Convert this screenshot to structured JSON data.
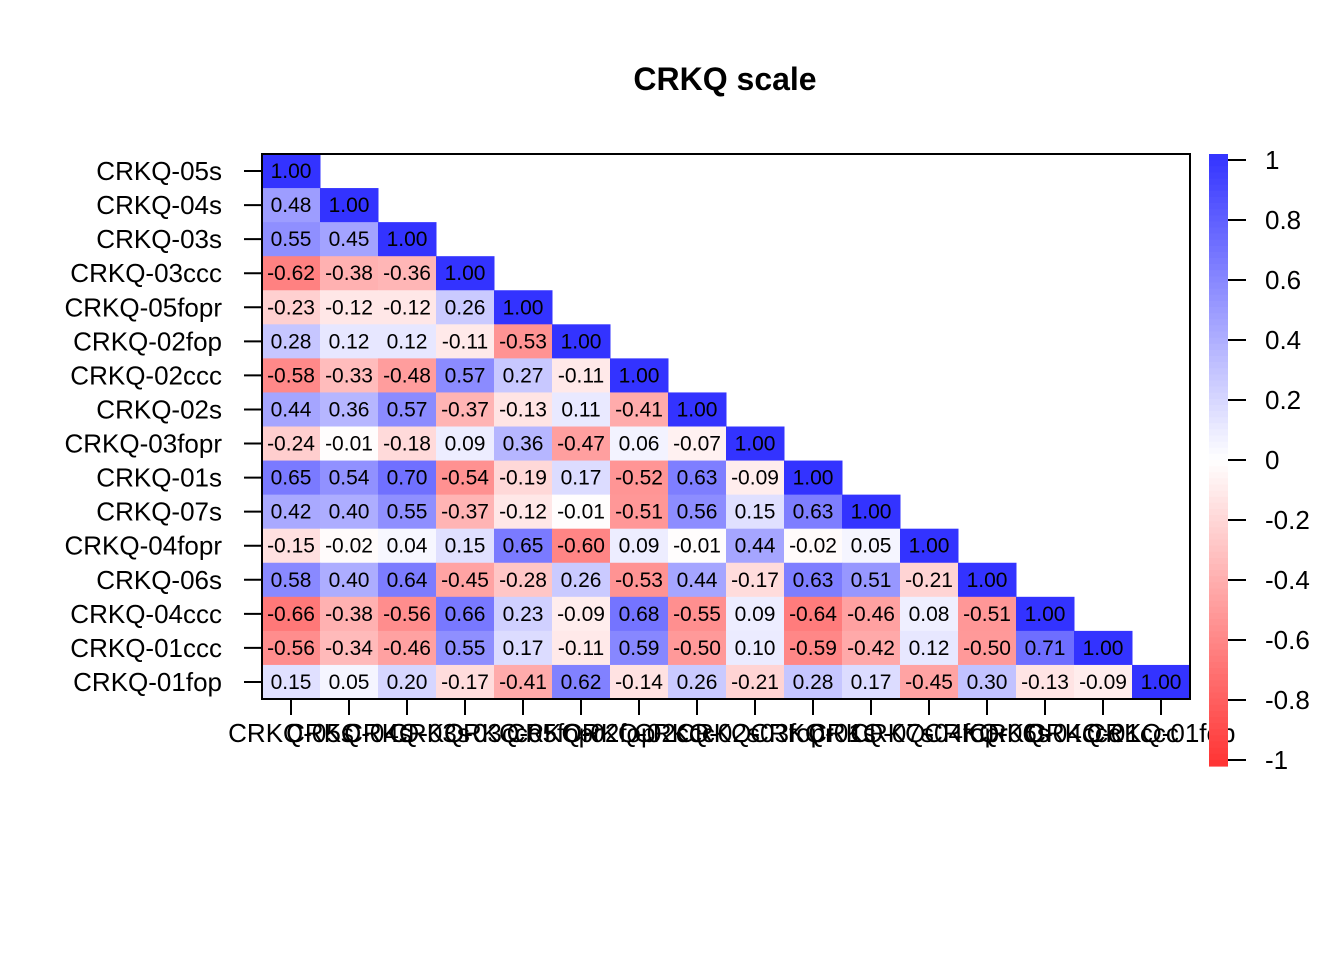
{
  "chart_data": {
    "type": "heatmap",
    "subtype": "lower-triangle correlation matrix",
    "title": "CRKQ scale",
    "variables": [
      "CRKQ-05s",
      "CRKQ-04s",
      "CRKQ-03s",
      "CRKQ-03ccc",
      "CRKQ-05fopr",
      "CRKQ-02fop",
      "CRKQ-02ccc",
      "CRKQ-02s",
      "CRKQ-03fopr",
      "CRKQ-01s",
      "CRKQ-07s",
      "CRKQ-04fopr",
      "CRKQ-06s",
      "CRKQ-04ccc",
      "CRKQ-01ccc",
      "CRKQ-01fop"
    ],
    "matrix": [
      [
        1.0
      ],
      [
        0.48,
        1.0
      ],
      [
        0.55,
        0.45,
        1.0
      ],
      [
        -0.62,
        -0.38,
        -0.36,
        1.0
      ],
      [
        -0.23,
        -0.12,
        -0.12,
        0.26,
        1.0
      ],
      [
        0.28,
        0.12,
        0.12,
        -0.11,
        -0.53,
        1.0
      ],
      [
        -0.58,
        -0.33,
        -0.48,
        0.57,
        0.27,
        -0.11,
        1.0
      ],
      [
        0.44,
        0.36,
        0.57,
        -0.37,
        -0.13,
        0.11,
        -0.41,
        1.0
      ],
      [
        -0.24,
        -0.01,
        -0.18,
        0.09,
        0.36,
        -0.47,
        0.06,
        -0.07,
        1.0
      ],
      [
        0.65,
        0.54,
        0.7,
        -0.54,
        -0.19,
        0.17,
        -0.52,
        0.63,
        -0.09,
        1.0
      ],
      [
        0.42,
        0.4,
        0.55,
        -0.37,
        -0.12,
        -0.01,
        -0.51,
        0.56,
        0.15,
        0.63,
        1.0
      ],
      [
        -0.15,
        -0.02,
        0.04,
        0.15,
        0.65,
        -0.6,
        0.09,
        -0.01,
        0.44,
        -0.02,
        0.05,
        1.0
      ],
      [
        0.58,
        0.4,
        0.64,
        -0.45,
        -0.28,
        0.26,
        -0.53,
        0.44,
        -0.17,
        0.63,
        0.51,
        -0.21,
        1.0
      ],
      [
        -0.66,
        -0.38,
        -0.56,
        0.66,
        0.23,
        -0.09,
        0.68,
        -0.55,
        0.09,
        -0.64,
        -0.46,
        0.08,
        -0.51,
        1.0
      ],
      [
        -0.56,
        -0.34,
        -0.46,
        0.55,
        0.17,
        -0.11,
        0.59,
        -0.5,
        0.1,
        -0.59,
        -0.42,
        0.12,
        -0.5,
        0.71,
        1.0
      ],
      [
        0.15,
        0.05,
        0.2,
        -0.17,
        -0.41,
        0.62,
        -0.14,
        0.26,
        -0.21,
        0.28,
        0.17,
        -0.45,
        0.3,
        -0.13,
        -0.09,
        1.0
      ]
    ],
    "color_scale": {
      "min": -1,
      "max": 1,
      "low_color": "#ff3333",
      "mid_color": "#ffffff",
      "high_color": "#3333ff",
      "ticks": [
        "1",
        "0.8",
        "0.6",
        "0.4",
        "0.2",
        "0",
        "-0.2",
        "-0.4",
        "-0.6",
        "-0.8",
        "-1"
      ]
    },
    "legend_position": "right"
  }
}
